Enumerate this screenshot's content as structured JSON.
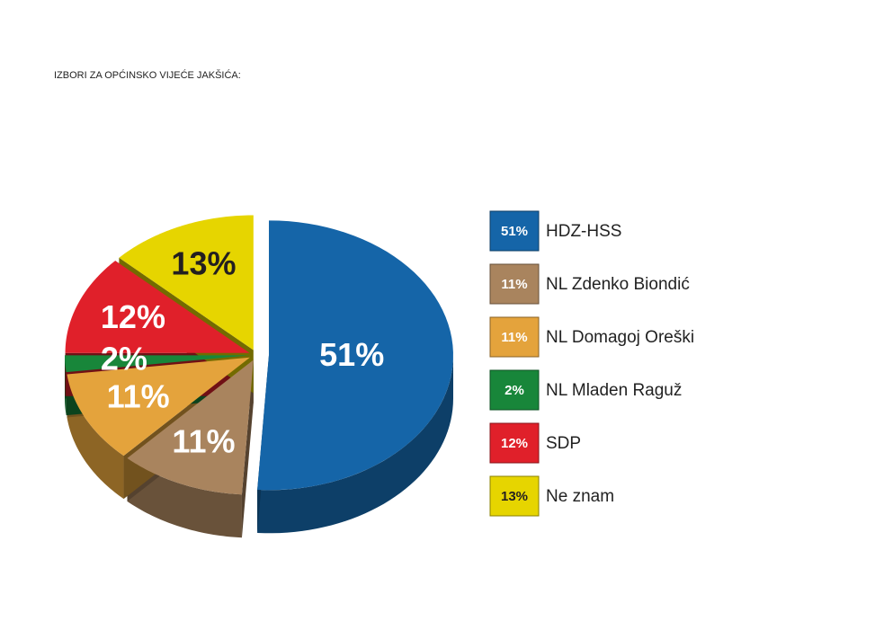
{
  "chart_data": {
    "type": "pie",
    "title": "IZBORI ZA OPĆINSKO VIJEĆE JAKŠIĆA:",
    "categories": [
      "HDZ-HSS",
      "NL Zdenko Biondić",
      "NL Domagoj Oreški",
      "NL Mladen Raguž",
      "SDP",
      "Ne znam"
    ],
    "values": [
      51,
      11,
      11,
      2,
      12,
      13
    ],
    "value_labels": [
      "51%",
      "11%",
      "11%",
      "2%",
      "12%",
      "13%"
    ],
    "colors": [
      "#1565a8",
      "#a9845e",
      "#e4a33c",
      "#18863a",
      "#e0202a",
      "#e6d500"
    ]
  }
}
